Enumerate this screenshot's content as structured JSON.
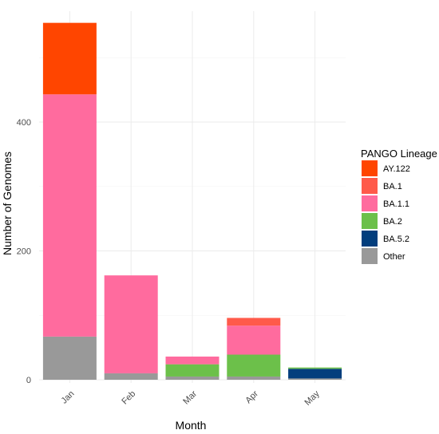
{
  "chart_data": {
    "type": "bar",
    "stacked": true,
    "xlabel": "Month",
    "ylabel": "Number of Genomes",
    "ylim": [
      0,
      560
    ],
    "yticks": [
      0,
      200,
      400
    ],
    "grid": true,
    "legend_position": "right",
    "legend_title": "PANGO Lineage",
    "categories": [
      "Jan",
      "Feb",
      "Mar",
      "Apr",
      "May"
    ],
    "series": [
      {
        "name": "Other",
        "color": "#999999",
        "values": [
          67,
          10,
          5,
          5,
          2
        ]
      },
      {
        "name": "BA.5.2",
        "color": "#023e7d",
        "values": [
          0,
          0,
          0,
          0,
          15
        ]
      },
      {
        "name": "BA.2",
        "color": "#6cc04a",
        "values": [
          0,
          0,
          19,
          34,
          2
        ]
      },
      {
        "name": "BA.1.1",
        "color": "#ff6b9e",
        "values": [
          376,
          152,
          12,
          45,
          0
        ]
      },
      {
        "name": "BA.1",
        "color": "#ff5a4a",
        "values": [
          0,
          0,
          0,
          12,
          0
        ]
      },
      {
        "name": "AY.122",
        "color": "#ff4500",
        "values": [
          111,
          0,
          0,
          0,
          0
        ]
      }
    ],
    "legend_order": [
      "AY.122",
      "BA.1",
      "BA.1.1",
      "BA.2",
      "BA.5.2",
      "Other"
    ]
  }
}
